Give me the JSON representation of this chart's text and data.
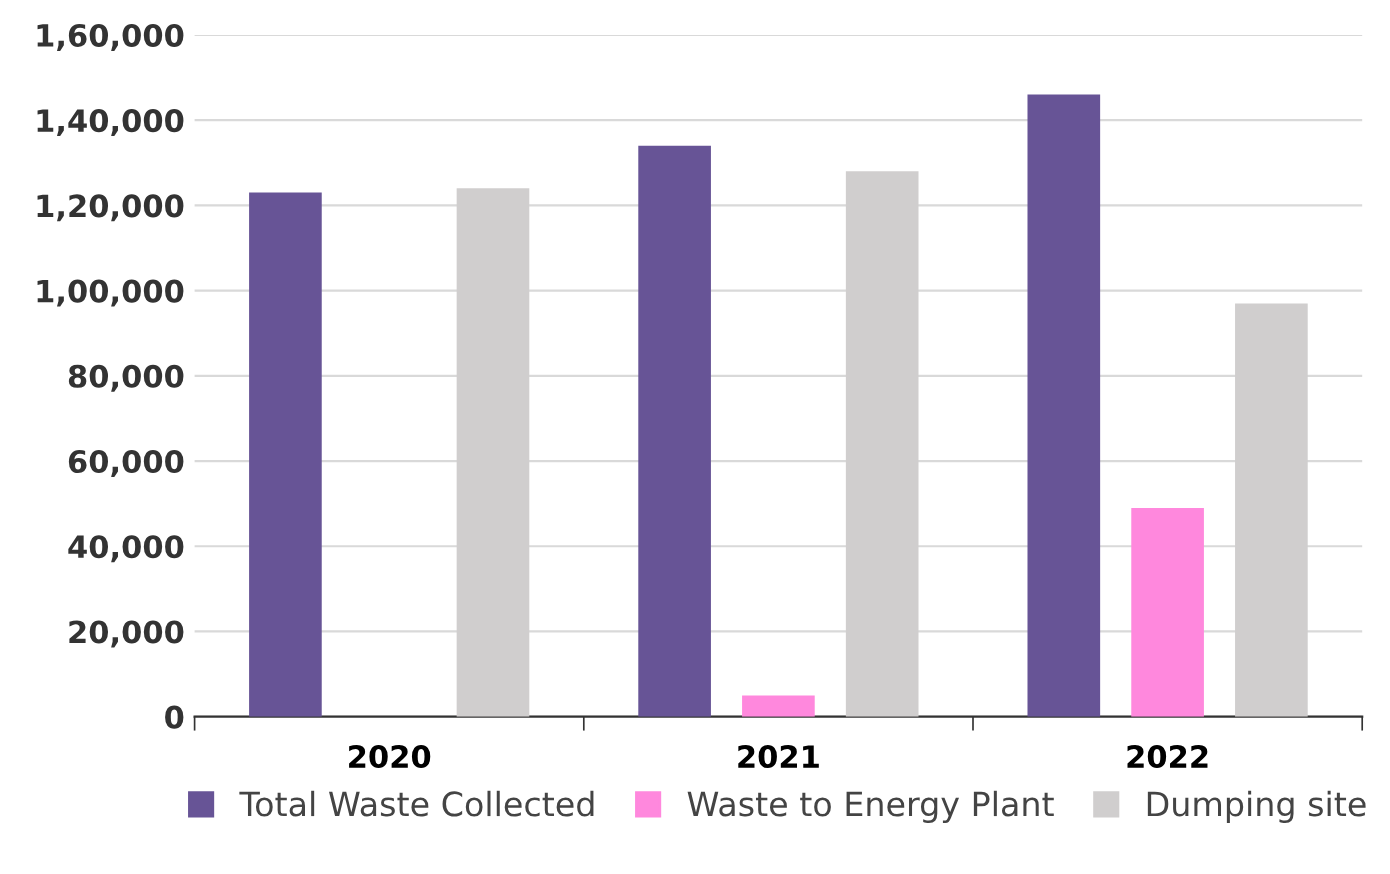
{
  "chart_data": {
    "type": "bar",
    "categories": [
      "2020",
      "2021",
      "2022"
    ],
    "series": [
      {
        "name": "Total Waste Collected",
        "color": "#675496",
        "values": [
          123000,
          134000,
          146000
        ]
      },
      {
        "name": "Waste to Energy Plant",
        "color": "#ff88dd",
        "values": [
          0,
          5000,
          49000
        ]
      },
      {
        "name": "Dumping site",
        "color": "#d0cece",
        "values": [
          124000,
          128000,
          97000
        ]
      }
    ],
    "ylim": [
      0,
      160000
    ],
    "yticks": [
      0,
      {
        "value": 20000,
        "label": "20,000"
      },
      {
        "value": 40000,
        "label": "40,000"
      },
      {
        "value": 60000,
        "label": "60,000"
      },
      {
        "value": 80000,
        "label": "80,000"
      },
      {
        "value": 100000,
        "label": "1,00,000"
      },
      {
        "value": 120000,
        "label": "1,20,000"
      },
      {
        "value": 140000,
        "label": "1,40,000"
      },
      {
        "value": 160000,
        "label": "1,60,000"
      }
    ],
    "grid": "y",
    "legend": "bottom"
  }
}
